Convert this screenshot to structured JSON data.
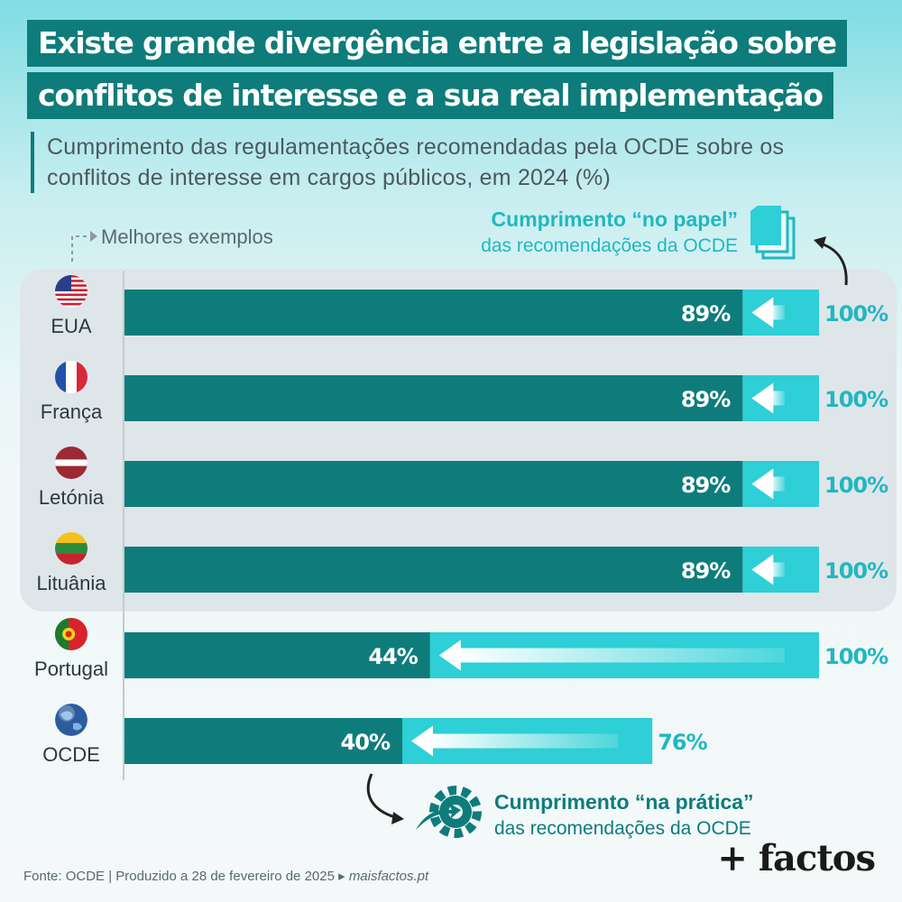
{
  "title_line1": "Existe grande divergência entre a legislação sobre",
  "title_line2": "conflitos de interesse e a sua real implementação",
  "subtitle": "Cumprimento das regulamentações recomendadas pela OCDE sobre os conflitos de interesse em cargos públicos, em 2024 (%)",
  "best_examples_label": "Melhores exemplos",
  "legend": {
    "paper_strong": "Cumprimento “no papel”",
    "paper_light": "das recomendações da OCDE",
    "practice_strong": "Cumprimento “na prática”",
    "practice_light": "das recomendações da OCDE"
  },
  "footer": {
    "source": "Fonte: OCDE | Produzido a 28 de fevereiro de 2025 ▸ ",
    "site": "maisfactos.pt"
  },
  "brand": "+ factos",
  "colors": {
    "practice": "#0e7c7b",
    "paper": "#2ecfd6",
    "paper_text": "#1fb8c0",
    "panel": "#dfe6ea"
  },
  "chart_data": {
    "type": "bar",
    "orientation": "horizontal",
    "xlim": [
      0,
      100
    ],
    "categories": [
      "EUA",
      "França",
      "Letónia",
      "Lituânia",
      "Portugal",
      "OCDE"
    ],
    "flags": [
      "usa-flag",
      "france-flag",
      "latvia-flag",
      "lithuania-flag",
      "portugal-flag",
      "globe"
    ],
    "series": [
      {
        "name": "Cumprimento “na prática”",
        "values": [
          89,
          89,
          89,
          89,
          44,
          40
        ]
      },
      {
        "name": "Cumprimento “no papel”",
        "values": [
          100,
          100,
          100,
          100,
          100,
          76
        ]
      }
    ],
    "value_labels_practice": [
      "89%",
      "89%",
      "89%",
      "89%",
      "44%",
      "40%"
    ],
    "value_labels_paper": [
      "100%",
      "100%",
      "100%",
      "100%",
      "100%",
      "76%"
    ],
    "highlighted_group": [
      "EUA",
      "França",
      "Letónia",
      "Lituânia"
    ]
  }
}
